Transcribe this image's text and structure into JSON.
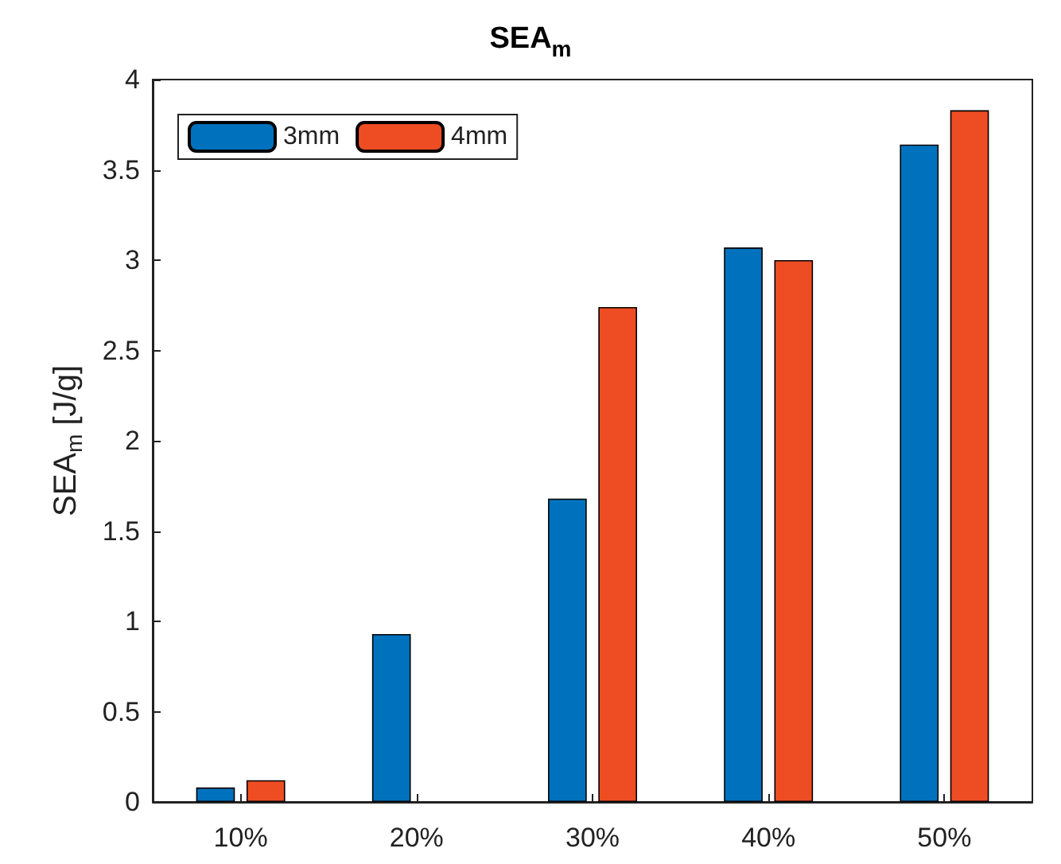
{
  "chart_data": {
    "type": "bar",
    "title": "SEA$_{m}$",
    "ylabel": "SEA$_{m}$ [J/g]",
    "categories": [
      "10%",
      "20%",
      "30%",
      "40%",
      "50%"
    ],
    "series": [
      {
        "name": "3mm",
        "color": "#0072bd",
        "values": [
          0.08,
          0.93,
          1.68,
          3.07,
          3.64
        ]
      },
      {
        "name": "4mm",
        "color": "#ee4d24",
        "values": [
          0.12,
          null,
          2.74,
          3.0,
          3.83
        ]
      }
    ],
    "ylim": [
      0,
      4
    ],
    "yticks": [
      0,
      0.5,
      1,
      1.5,
      2,
      2.5,
      3,
      3.5,
      4
    ],
    "grid": false,
    "legend": "top left"
  }
}
